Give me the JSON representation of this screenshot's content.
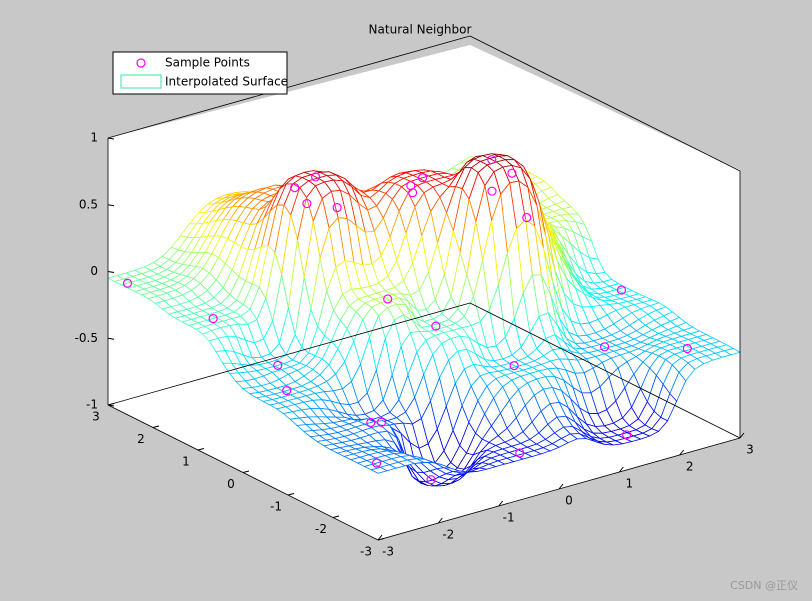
{
  "chart_data": {
    "type": "surface",
    "title": "Natural Neighbor",
    "series": [
      {
        "name": "Sample Points",
        "color": "#ff00ff",
        "x": [
          -1.2,
          0.75,
          0.2,
          1.5,
          2.8,
          2.9,
          2.3,
          1.3,
          -1.3,
          -1.6,
          -2,
          -2.6,
          -2.9,
          -2.2,
          -2.5,
          -0.3,
          -0.8,
          0.5,
          -0.4,
          0.3,
          1.8,
          2.5,
          -0.9,
          0.9,
          1.9,
          -2.8,
          -0.5
        ],
        "y": [
          0.8,
          -0.5,
          0.3,
          0.5,
          1.8,
          -0.5,
          0.8,
          -2.76,
          -1.9,
          -1.2,
          -1.5,
          1.2,
          2.7,
          0.3,
          -0.3,
          2.2,
          1.8,
          2.6,
          -0.8,
          -1.6,
          -1.6,
          -2.5,
          -0.4,
          1.5,
          2.8,
          -2.7,
          -2.8
        ],
        "z": [
          0.85,
          0.95,
          0.75,
          0.45,
          0.2,
          -0.3,
          0.1,
          -0.8,
          -0.95,
          -0.6,
          -0.5,
          -0.1,
          -0.05,
          -0.35,
          -0.4,
          0.3,
          0.55,
          0.1,
          -0.1,
          -0.35,
          -0.4,
          -0.35,
          0.1,
          0.4,
          0,
          -0.5,
          -0.7
        ]
      },
      {
        "name": "Interpolated Surface",
        "color": "#40e0a0"
      }
    ],
    "xlim": [
      -3,
      3
    ],
    "ylim": [
      -3,
      3
    ],
    "zlim": [
      -1,
      1
    ],
    "xticks": [
      -3,
      -2,
      -1,
      0,
      1,
      2,
      3
    ],
    "yticks": [
      -3,
      -2,
      -1,
      0,
      1,
      2,
      3
    ],
    "zticks": [
      -1,
      -0.5,
      0,
      0.5,
      1
    ],
    "watermark": "CSDN @正仪"
  }
}
